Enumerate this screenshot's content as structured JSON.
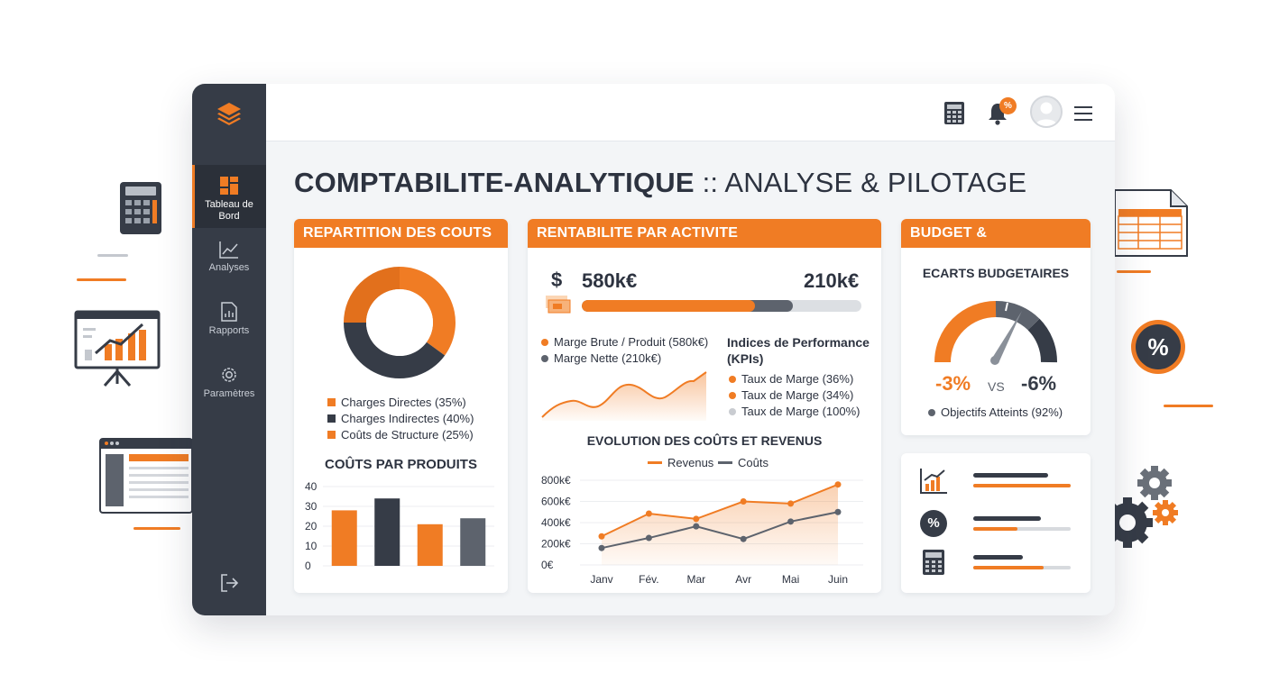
{
  "app": {
    "title_bold": "COMPTABILITE-ANALYTIQUE",
    "title_light": ":: ANALYSE & PILOTAGE"
  },
  "sidebar": {
    "items": [
      {
        "label": "Tableau de Bord",
        "icon": "dashboard-icon",
        "active": true
      },
      {
        "label": "Analyses",
        "icon": "line-chart-icon",
        "active": false
      },
      {
        "label": "Rapports",
        "icon": "report-icon",
        "active": false
      },
      {
        "label": "Paramètres",
        "icon": "gear-icon",
        "active": false
      }
    ],
    "logout_icon": "logout-icon"
  },
  "topbar": {
    "badge": "%",
    "icons": [
      "calculator-icon",
      "bell-icon",
      "avatar-icon",
      "menu-icon"
    ]
  },
  "colors": {
    "accent": "#f07c24",
    "dark": "#363c47",
    "grey": "#5d636d",
    "light_grey": "#d7dade"
  },
  "repartition": {
    "header": "REPARTITION DES COUTS",
    "legend": [
      {
        "label": "Charges Directes (35%)",
        "color": "#f07c24"
      },
      {
        "label": "Charges Indirectes (40%)",
        "color": "#363c47"
      },
      {
        "label": "Coûts de Structure (25%)",
        "color": "#f07c24"
      }
    ],
    "products_title": "COÛTS PAR PRODUITS"
  },
  "rentabilite": {
    "header": "RENTABILITE PAR ACTIVITE",
    "currency": "$",
    "value_left": "580k€",
    "value_right": "210k€",
    "progress": {
      "orange": 0.62,
      "dark": 0.755
    },
    "legend": [
      {
        "label": "Marge Brute / Produit (580k€)",
        "color": "#f07c24"
      },
      {
        "label": "Marge Nette (210k€)",
        "color": "#5d636d"
      }
    ],
    "kpi_title_1": "Indices de Performance",
    "kpi_title_2": "(KPIs)",
    "kpis": [
      {
        "label": "Taux de Marge (36%)",
        "color": "#f07c24"
      },
      {
        "label": "Taux de Marge (34%)",
        "color": "#f07c24"
      },
      {
        "label": "Taux de Marge (100%)",
        "color": "#c9ccd1"
      }
    ],
    "evolution_title": "EVOLUTION DES COÛTS ET REVENUS"
  },
  "budget": {
    "header": "BUDGET & PREVISIONNEL",
    "subtitle": "ECARTS BUDGETAIRES",
    "value_left": "-3%",
    "vs": "VS",
    "value_right": "-6%",
    "objectives": "Objectifs Atteints (92%)",
    "mini_rows": [
      {
        "icon": "growth-chart-icon",
        "bar_dark": 0.77,
        "bar_orange": 1.0
      },
      {
        "icon": "percent-icon",
        "bar_dark": 0.69,
        "bar_orange": 0.45
      },
      {
        "icon": "calculator-icon",
        "bar_dark": 0.51,
        "bar_orange": 0.72
      }
    ]
  },
  "chart_data": [
    {
      "type": "pie",
      "title": "",
      "labels": [
        "Charges Directes",
        "Charges Indirectes",
        "Coûts de Structure"
      ],
      "values": [
        35,
        40,
        25
      ],
      "colors": [
        "#f07c24",
        "#363c47",
        "#f07c24"
      ]
    },
    {
      "type": "bar",
      "title": "COÛTS PAR PRODUITS",
      "categories": [
        "",
        "",
        "",
        ""
      ],
      "values": [
        28,
        34,
        21,
        24
      ],
      "colors": [
        "#f07c24",
        "#363c47",
        "#f07c24",
        "#5d636d"
      ],
      "yticks": [
        "40",
        "30",
        "20",
        "10",
        "0"
      ],
      "ylim": [
        0,
        40
      ],
      "xlabel": "",
      "ylabel": ""
    },
    {
      "type": "line",
      "title": "EVOLUTION DES COÛTS ET REVENUS",
      "categories": [
        "Janv",
        "Fév.",
        "Mar",
        "Avr",
        "Mai",
        "Juin"
      ],
      "series": [
        {
          "name": "Revenus",
          "color": "#f07c24",
          "values": [
            270,
            485,
            435,
            600,
            580,
            760
          ]
        },
        {
          "name": "Coûts",
          "color": "#5d636d",
          "values": [
            160,
            255,
            365,
            245,
            410,
            500
          ]
        }
      ],
      "yticks": [
        "800k€",
        "600k€",
        "400k€",
        "200k€",
        "0€"
      ],
      "ylim": [
        0,
        800
      ],
      "legend_position": "top",
      "xlabel": "",
      "ylabel": ""
    }
  ]
}
